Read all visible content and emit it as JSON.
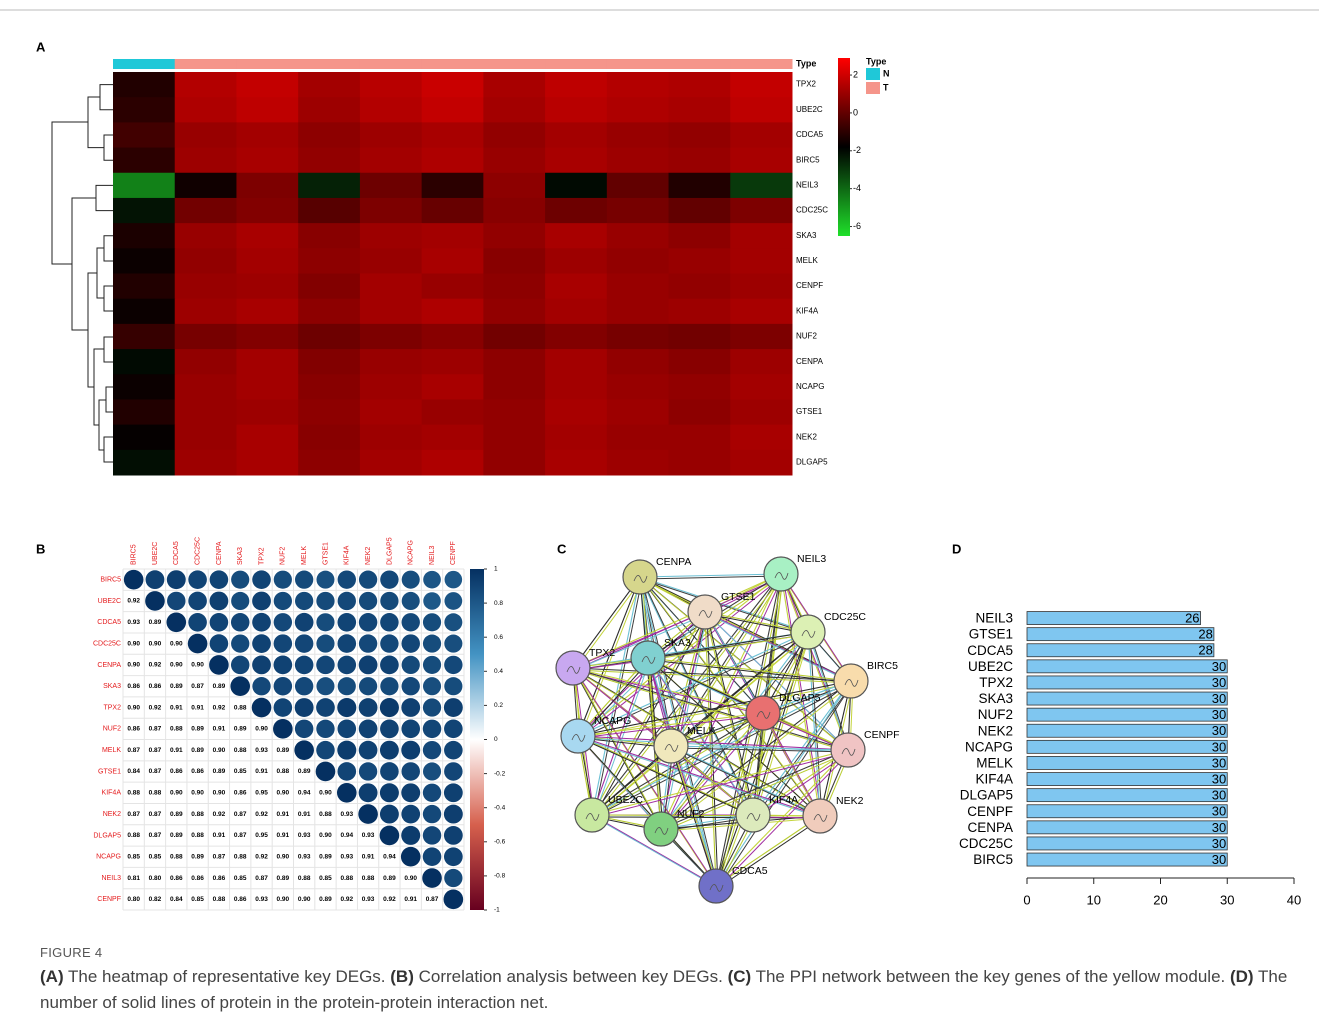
{
  "chart_data": [
    {
      "type": "heatmap",
      "panel": "A",
      "categories": [
        "TPX2",
        "UBE2C",
        "CDCA5",
        "BIRC5",
        "NEIL3",
        "CDC25C",
        "SKA3",
        "MELK",
        "CENPF",
        "KIF4A",
        "NUF2",
        "CENPA",
        "NCAPG",
        "GTSE1",
        "NEK2",
        "DLGAP5"
      ],
      "type_label": "Type",
      "sample_types": [
        "N",
        "T",
        "T",
        "T",
        "T",
        "T",
        "T",
        "T",
        "T",
        "T",
        "T"
      ],
      "values": [
        [
          -1.2,
          1.5,
          1.8,
          1.2,
          1.6,
          1.9,
          1.3,
          1.7,
          1.5,
          1.4,
          1.8
        ],
        [
          -1.0,
          1.4,
          1.7,
          1.1,
          1.5,
          1.8,
          1.2,
          1.6,
          1.4,
          1.3,
          1.7
        ],
        [
          -0.6,
          1.0,
          1.2,
          0.8,
          1.1,
          1.3,
          0.9,
          1.2,
          1.0,
          0.9,
          1.2
        ],
        [
          -1.0,
          1.1,
          1.3,
          0.9,
          1.2,
          1.4,
          1.0,
          1.3,
          1.1,
          1.0,
          1.3
        ],
        [
          -4.5,
          -1.5,
          0.5,
          -2.5,
          0.2,
          -1.0,
          0.8,
          -2.0,
          0.0,
          -1.2,
          -3.0
        ],
        [
          -2.2,
          0.3,
          0.6,
          -0.2,
          0.5,
          0.1,
          0.7,
          0.2,
          0.4,
          0.0,
          0.5
        ],
        [
          -1.3,
          1.0,
          1.3,
          0.7,
          1.1,
          1.2,
          0.9,
          1.3,
          1.0,
          0.8,
          1.2
        ],
        [
          -1.6,
          0.9,
          1.2,
          0.8,
          1.0,
          1.3,
          0.7,
          1.1,
          0.9,
          1.0,
          1.2
        ],
        [
          -1.2,
          1.0,
          1.1,
          0.6,
          1.2,
          1.0,
          0.8,
          1.3,
          1.0,
          0.9,
          1.1
        ],
        [
          -1.6,
          1.1,
          1.3,
          0.8,
          1.2,
          1.4,
          0.9,
          1.2,
          1.0,
          1.1,
          1.3
        ],
        [
          -0.8,
          0.4,
          0.6,
          0.2,
          0.5,
          0.7,
          0.3,
          0.6,
          0.4,
          0.3,
          0.5
        ],
        [
          -2.0,
          0.9,
          1.2,
          0.6,
          1.0,
          1.1,
          0.8,
          1.2,
          0.9,
          0.7,
          1.1
        ],
        [
          -1.6,
          1.0,
          1.2,
          0.7,
          1.1,
          1.3,
          0.8,
          1.2,
          1.0,
          0.9,
          1.2
        ],
        [
          -1.2,
          1.0,
          1.1,
          0.8,
          1.2,
          1.0,
          0.9,
          1.3,
          1.1,
          0.8,
          1.1
        ],
        [
          -1.7,
          1.0,
          1.3,
          0.7,
          1.1,
          1.2,
          0.9,
          1.2,
          1.0,
          1.0,
          1.3
        ],
        [
          -2.1,
          1.1,
          1.3,
          0.8,
          1.2,
          1.4,
          0.9,
          1.3,
          1.1,
          1.0,
          1.2
        ]
      ],
      "colorbar": {
        "lim": [
          -6.5,
          2.9
        ],
        "ticks": [
          2,
          0,
          -2,
          -4,
          -6
        ],
        "colors": [
          "#1fe02a",
          "#000000",
          "#ff0000"
        ]
      },
      "legend": {
        "title": "Type",
        "items": [
          {
            "name": "N",
            "color": "#1fc8d8"
          },
          {
            "name": "T",
            "color": "#f5958a"
          }
        ]
      }
    },
    {
      "type": "corrplot",
      "panel": "B",
      "label_color": "#e41a1c",
      "categories": [
        "BIRC5",
        "UBE2C",
        "CDCA5",
        "CDC25C",
        "CENPA",
        "SKA3",
        "TPX2",
        "NUF2",
        "MELK",
        "GTSE1",
        "KIF4A",
        "NEK2",
        "DLGAP5",
        "NCAPG",
        "NEIL3",
        "CENPF"
      ],
      "values": [
        [
          1
        ],
        [
          0.92,
          1
        ],
        [
          0.93,
          0.89,
          1
        ],
        [
          0.9,
          0.9,
          0.9,
          1
        ],
        [
          0.9,
          0.92,
          0.9,
          0.9,
          1
        ],
        [
          0.86,
          0.86,
          0.89,
          0.87,
          0.89,
          1
        ],
        [
          0.9,
          0.92,
          0.91,
          0.91,
          0.92,
          0.88,
          1
        ],
        [
          0.86,
          0.87,
          0.88,
          0.89,
          0.91,
          0.89,
          0.9,
          1
        ],
        [
          0.87,
          0.87,
          0.91,
          0.89,
          0.9,
          0.88,
          0.93,
          0.89,
          1
        ],
        [
          0.84,
          0.87,
          0.86,
          0.86,
          0.89,
          0.85,
          0.91,
          0.88,
          0.89,
          1
        ],
        [
          0.88,
          0.88,
          0.9,
          0.9,
          0.9,
          0.86,
          0.95,
          0.9,
          0.94,
          0.9,
          1
        ],
        [
          0.87,
          0.87,
          0.89,
          0.88,
          0.92,
          0.87,
          0.92,
          0.91,
          0.91,
          0.88,
          0.93,
          1
        ],
        [
          0.88,
          0.87,
          0.89,
          0.88,
          0.91,
          0.87,
          0.95,
          0.91,
          0.93,
          0.9,
          0.94,
          0.93,
          1
        ],
        [
          0.85,
          0.85,
          0.88,
          0.89,
          0.87,
          0.88,
          0.92,
          0.9,
          0.93,
          0.89,
          0.93,
          0.91,
          0.94,
          1
        ],
        [
          0.81,
          0.8,
          0.86,
          0.86,
          0.86,
          0.85,
          0.87,
          0.89,
          0.88,
          0.85,
          0.88,
          0.88,
          0.89,
          0.9,
          1
        ],
        [
          0.8,
          0.82,
          0.84,
          0.85,
          0.88,
          0.86,
          0.93,
          0.9,
          0.9,
          0.89,
          0.92,
          0.93,
          0.92,
          0.91,
          0.87,
          1
        ]
      ],
      "value_labels": [
        [
          null
        ],
        [
          "0.92",
          null
        ],
        [
          "0.93",
          "0.89",
          null
        ],
        [
          "0.90",
          "0.90",
          "0.90",
          null
        ],
        [
          "0.90",
          "0.92",
          "0.90",
          "0.90",
          null
        ],
        [
          "0.86",
          "0.86",
          "0.89",
          "0.87",
          "0.89",
          null
        ],
        [
          "0.90",
          "0.92",
          "0.91",
          "0.91",
          "0.92",
          "0.88",
          null
        ],
        [
          "0.86",
          "0.87",
          "0.88",
          "0.89",
          "0.91",
          "0.89",
          "0.90",
          null
        ],
        [
          "0.87",
          "0.87",
          "0.91",
          "0.89",
          "0.90",
          "0.88",
          "0.93",
          "0.89",
          null
        ],
        [
          "0.84",
          "0.87",
          "0.86",
          "0.86",
          "0.89",
          "0.85",
          "0.91",
          "0.88",
          "0.89",
          null
        ],
        [
          "0.88",
          "0.88",
          "0.90",
          "0.90",
          "0.90",
          "0.86",
          "0.95",
          "0.90",
          "0.94",
          "0.90",
          null
        ],
        [
          "0.87",
          "0.87",
          "0.89",
          "0.88",
          "0.92",
          "0.87",
          "0.92",
          "0.91",
          "0.91",
          "0.88",
          "0.93",
          null
        ],
        [
          "0.88",
          "0.87",
          "0.89",
          "0.88",
          "0.91",
          "0.87",
          "0.95",
          "0.91",
          "0.93",
          "0.90",
          "0.94",
          "0.93",
          null
        ],
        [
          "0.85",
          "0.85",
          "0.88",
          "0.89",
          "0.87",
          "0.88",
          "0.92",
          "0.90",
          "0.93",
          "0.89",
          "0.93",
          "0.91",
          "0.94",
          null
        ],
        [
          "0.81",
          "0.80",
          "0.86",
          "0.86",
          "0.86",
          "0.85",
          "0.87",
          "0.89",
          "0.88",
          "0.85",
          "0.88",
          "0.88",
          "0.89",
          "0.90",
          null
        ],
        [
          "0.80",
          "0.82",
          "0.84",
          "0.85",
          "0.88",
          "0.86",
          "0.93",
          "0.90",
          "0.90",
          "0.89",
          "0.92",
          "0.93",
          "0.92",
          "0.91",
          "0.87",
          null
        ]
      ],
      "colorbar": {
        "lim": [
          -1,
          1
        ],
        "ticks": [
          1,
          0.8,
          0.6,
          0.4,
          0.2,
          0,
          -0.2,
          -0.4,
          -0.6,
          -0.8,
          -1
        ],
        "colors": [
          "#67001f",
          "#d6604d",
          "#ffffff",
          "#4393c3",
          "#053061"
        ]
      }
    },
    {
      "type": "bar",
      "panel": "D",
      "horizontal": true,
      "categories": [
        "NEIL3",
        "GTSE1",
        "CDCA5",
        "UBE2C",
        "TPX2",
        "SKA3",
        "NUF2",
        "NEK2",
        "NCAPG",
        "MELK",
        "KIF4A",
        "DLGAP5",
        "CENPF",
        "CENPA",
        "CDC25C",
        "BIRC5"
      ],
      "values": [
        26,
        28,
        28,
        30,
        30,
        30,
        30,
        30,
        30,
        30,
        30,
        30,
        30,
        30,
        30,
        30
      ],
      "color": "#7fc6f0",
      "xlim": [
        0,
        40
      ],
      "xticks": [
        0,
        10,
        20,
        30,
        40
      ]
    }
  ],
  "network": {
    "panel": "C",
    "nodes": [
      {
        "label": "CENPA",
        "color": "#d6d68c"
      },
      {
        "label": "NEIL3",
        "color": "#a8f0c4"
      },
      {
        "label": "GTSE1",
        "color": "#f0dcc8"
      },
      {
        "label": "CDC25C",
        "color": "#dcf0b4"
      },
      {
        "label": "TPX2",
        "color": "#c8a8f0"
      },
      {
        "label": "SKA3",
        "color": "#80d0d0"
      },
      {
        "label": "BIRC5",
        "color": "#f8dcac"
      },
      {
        "label": "DLGAP5",
        "color": "#e87070"
      },
      {
        "label": "NCAPG",
        "color": "#a8d8f0"
      },
      {
        "label": "MELK",
        "color": "#f0e8bc"
      },
      {
        "label": "CENPF",
        "color": "#f0c4c4"
      },
      {
        "label": "UBE2C",
        "color": "#c8e8a0"
      },
      {
        "label": "NUF2",
        "color": "#80d080"
      },
      {
        "label": "KIF4A",
        "color": "#dceabc"
      },
      {
        "label": "NEK2",
        "color": "#f0ccbc"
      },
      {
        "label": "CDCA5",
        "color": "#7070c8"
      }
    ]
  },
  "caption": {
    "figure": "FIGURE 4",
    "parts": [
      {
        "label": "(A)",
        "text": " The heatmap of representative key DEGs. "
      },
      {
        "label": "(B)",
        "text": " Correlation analysis between key DEGs. "
      },
      {
        "label": "(C)",
        "text": " The PPI network between the key genes of the yellow module. "
      },
      {
        "label": "(D)",
        "text": " The number of solid lines of protein in the protein-protein interaction net."
      }
    ]
  }
}
